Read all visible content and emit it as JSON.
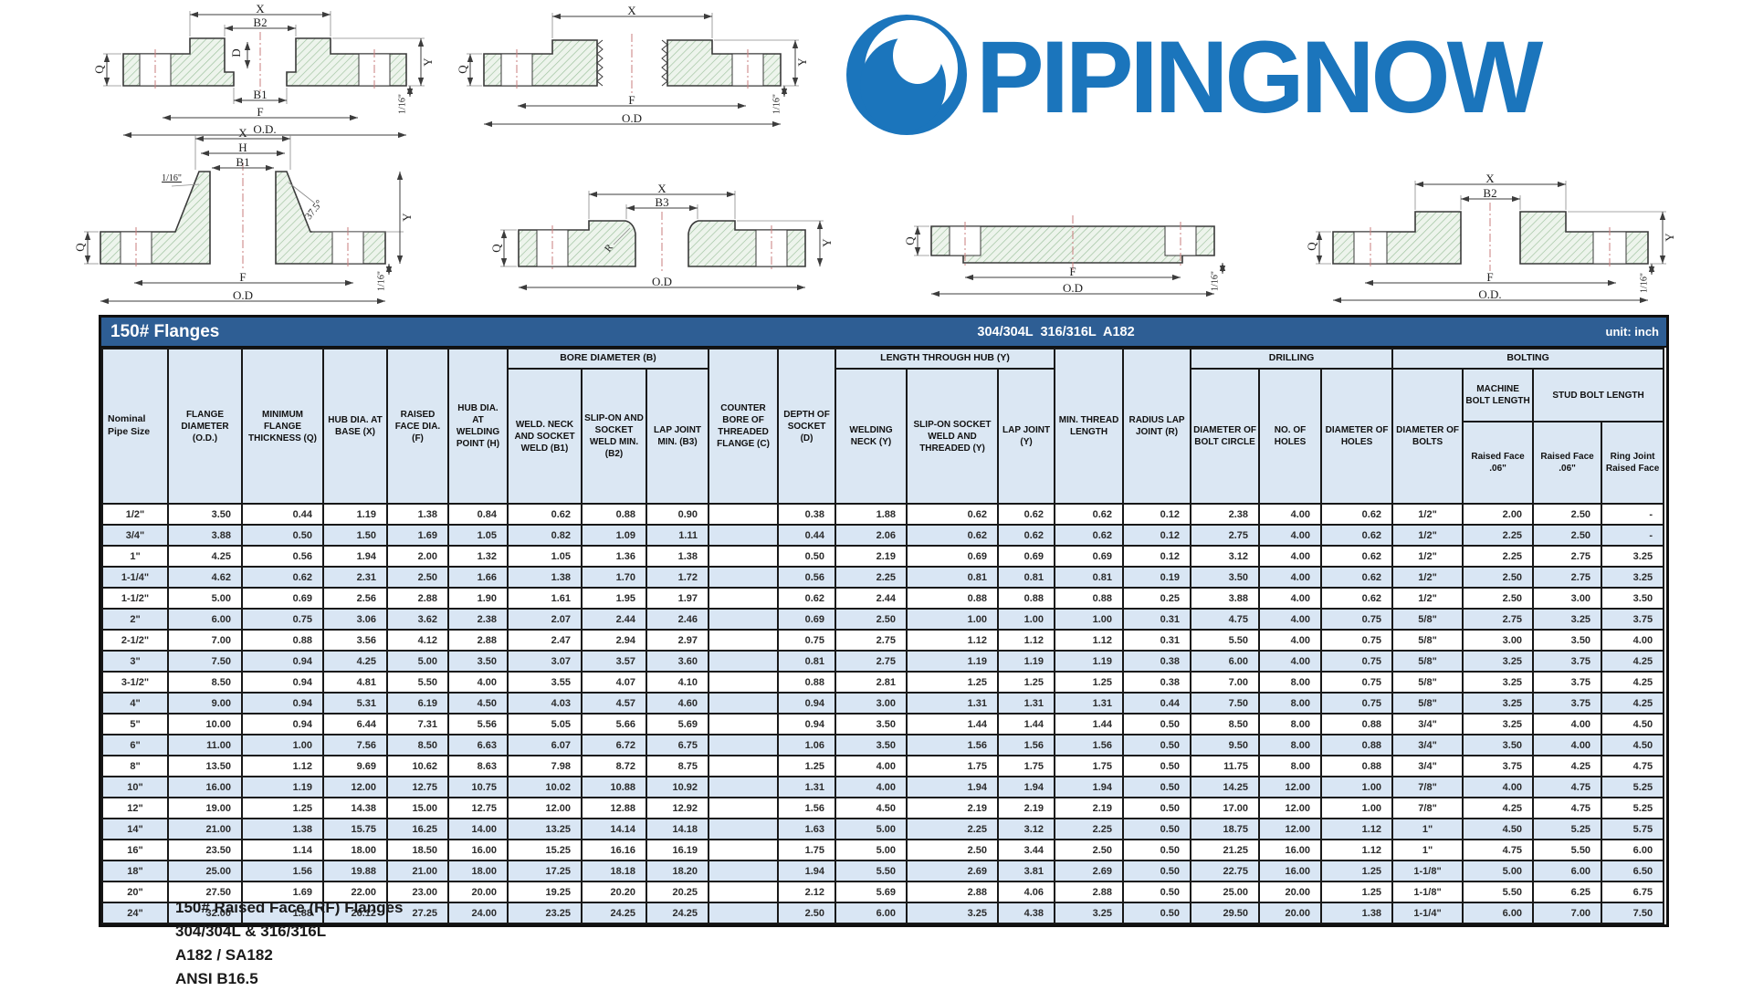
{
  "logo": {
    "text": "PIPINGNOW",
    "color": "#1b75bc"
  },
  "dim_labels": {
    "x": "X",
    "h": "H",
    "d": "D",
    "q": "Q",
    "y": "Y",
    "f": "F",
    "r": "R",
    "b1": "B1",
    "b2": "B2",
    "b3": "B3",
    "od": "O.D.",
    "od_alt": "O.D",
    "sixteenth": "1/16\"",
    "angle": "37.5°"
  },
  "table": {
    "title_left": "150# Flanges",
    "title_center": "304/304L  316/316L  A182",
    "title_right": "unit: inch",
    "groups": {
      "bore": "BORE DIAMETER (B)",
      "length_hub": "LENGTH THROUGH HUB (Y)",
      "drilling": "DRILLING",
      "bolting": "BOLTING",
      "machine_bolt": "MACHINE BOLT LENGTH",
      "stud_bolt": "STUD BOLT LENGTH"
    },
    "columns": [
      "Nominal Pipe Size",
      "FLANGE DIAMETER (O.D.)",
      "MINIMUM FLANGE THICKNESS (Q)",
      "HUB DIA. AT BASE (X)",
      "RAISED FACE DIA. (F)",
      "HUB DIA. AT WELDING POINT (H)",
      "WELD. NECK AND SOCKET WELD (B1)",
      "SLIP-ON AND SOCKET WELD MIN. (B2)",
      "LAP JOINT MIN. (B3)",
      "COUNTER BORE OF THREADED FLANGE (C)",
      "DEPTH OF SOCKET (D)",
      "WELDING NECK (Y)",
      "SLIP-ON SOCKET WELD AND THREADED (Y)",
      "LAP JOINT (Y)",
      "MIN. THREAD LENGTH",
      "RADIUS LAP JOINT (R)",
      "DIAMETER OF BOLT CIRCLE",
      "NO. OF HOLES",
      "DIAMETER OF HOLES",
      "DIAMETER OF BOLTS",
      "Raised Face .06\"",
      "Raised Face .06\"",
      "Ring Joint Raised Face"
    ],
    "rows": [
      [
        "1/2\"",
        "3.50",
        "0.44",
        "1.19",
        "1.38",
        "0.84",
        "0.62",
        "0.88",
        "0.90",
        "",
        "0.38",
        "1.88",
        "0.62",
        "0.62",
        "0.62",
        "0.12",
        "2.38",
        "4.00",
        "0.62",
        "1/2\"",
        "2.00",
        "2.50",
        "-"
      ],
      [
        "3/4\"",
        "3.88",
        "0.50",
        "1.50",
        "1.69",
        "1.05",
        "0.82",
        "1.09",
        "1.11",
        "",
        "0.44",
        "2.06",
        "0.62",
        "0.62",
        "0.62",
        "0.12",
        "2.75",
        "4.00",
        "0.62",
        "1/2\"",
        "2.25",
        "2.50",
        "-"
      ],
      [
        "1\"",
        "4.25",
        "0.56",
        "1.94",
        "2.00",
        "1.32",
        "1.05",
        "1.36",
        "1.38",
        "",
        "0.50",
        "2.19",
        "0.69",
        "0.69",
        "0.69",
        "0.12",
        "3.12",
        "4.00",
        "0.62",
        "1/2\"",
        "2.25",
        "2.75",
        "3.25"
      ],
      [
        "1-1/4\"",
        "4.62",
        "0.62",
        "2.31",
        "2.50",
        "1.66",
        "1.38",
        "1.70",
        "1.72",
        "",
        "0.56",
        "2.25",
        "0.81",
        "0.81",
        "0.81",
        "0.19",
        "3.50",
        "4.00",
        "0.62",
        "1/2\"",
        "2.50",
        "2.75",
        "3.25"
      ],
      [
        "1-1/2\"",
        "5.00",
        "0.69",
        "2.56",
        "2.88",
        "1.90",
        "1.61",
        "1.95",
        "1.97",
        "",
        "0.62",
        "2.44",
        "0.88",
        "0.88",
        "0.88",
        "0.25",
        "3.88",
        "4.00",
        "0.62",
        "1/2\"",
        "2.50",
        "3.00",
        "3.50"
      ],
      [
        "2\"",
        "6.00",
        "0.75",
        "3.06",
        "3.62",
        "2.38",
        "2.07",
        "2.44",
        "2.46",
        "",
        "0.69",
        "2.50",
        "1.00",
        "1.00",
        "1.00",
        "0.31",
        "4.75",
        "4.00",
        "0.75",
        "5/8\"",
        "2.75",
        "3.25",
        "3.75"
      ],
      [
        "2-1/2\"",
        "7.00",
        "0.88",
        "3.56",
        "4.12",
        "2.88",
        "2.47",
        "2.94",
        "2.97",
        "",
        "0.75",
        "2.75",
        "1.12",
        "1.12",
        "1.12",
        "0.31",
        "5.50",
        "4.00",
        "0.75",
        "5/8\"",
        "3.00",
        "3.50",
        "4.00"
      ],
      [
        "3\"",
        "7.50",
        "0.94",
        "4.25",
        "5.00",
        "3.50",
        "3.07",
        "3.57",
        "3.60",
        "",
        "0.81",
        "2.75",
        "1.19",
        "1.19",
        "1.19",
        "0.38",
        "6.00",
        "4.00",
        "0.75",
        "5/8\"",
        "3.25",
        "3.75",
        "4.25"
      ],
      [
        "3-1/2\"",
        "8.50",
        "0.94",
        "4.81",
        "5.50",
        "4.00",
        "3.55",
        "4.07",
        "4.10",
        "",
        "0.88",
        "2.81",
        "1.25",
        "1.25",
        "1.25",
        "0.38",
        "7.00",
        "8.00",
        "0.75",
        "5/8\"",
        "3.25",
        "3.75",
        "4.25"
      ],
      [
        "4\"",
        "9.00",
        "0.94",
        "5.31",
        "6.19",
        "4.50",
        "4.03",
        "4.57",
        "4.60",
        "",
        "0.94",
        "3.00",
        "1.31",
        "1.31",
        "1.31",
        "0.44",
        "7.50",
        "8.00",
        "0.75",
        "5/8\"",
        "3.25",
        "3.75",
        "4.25"
      ],
      [
        "5\"",
        "10.00",
        "0.94",
        "6.44",
        "7.31",
        "5.56",
        "5.05",
        "5.66",
        "5.69",
        "",
        "0.94",
        "3.50",
        "1.44",
        "1.44",
        "1.44",
        "0.50",
        "8.50",
        "8.00",
        "0.88",
        "3/4\"",
        "3.25",
        "4.00",
        "4.50"
      ],
      [
        "6\"",
        "11.00",
        "1.00",
        "7.56",
        "8.50",
        "6.63",
        "6.07",
        "6.72",
        "6.75",
        "",
        "1.06",
        "3.50",
        "1.56",
        "1.56",
        "1.56",
        "0.50",
        "9.50",
        "8.00",
        "0.88",
        "3/4\"",
        "3.50",
        "4.00",
        "4.50"
      ],
      [
        "8\"",
        "13.50",
        "1.12",
        "9.69",
        "10.62",
        "8.63",
        "7.98",
        "8.72",
        "8.75",
        "",
        "1.25",
        "4.00",
        "1.75",
        "1.75",
        "1.75",
        "0.50",
        "11.75",
        "8.00",
        "0.88",
        "3/4\"",
        "3.75",
        "4.25",
        "4.75"
      ],
      [
        "10\"",
        "16.00",
        "1.19",
        "12.00",
        "12.75",
        "10.75",
        "10.02",
        "10.88",
        "10.92",
        "",
        "1.31",
        "4.00",
        "1.94",
        "1.94",
        "1.94",
        "0.50",
        "14.25",
        "12.00",
        "1.00",
        "7/8\"",
        "4.00",
        "4.75",
        "5.25"
      ],
      [
        "12\"",
        "19.00",
        "1.25",
        "14.38",
        "15.00",
        "12.75",
        "12.00",
        "12.88",
        "12.92",
        "",
        "1.56",
        "4.50",
        "2.19",
        "2.19",
        "2.19",
        "0.50",
        "17.00",
        "12.00",
        "1.00",
        "7/8\"",
        "4.25",
        "4.75",
        "5.25"
      ],
      [
        "14\"",
        "21.00",
        "1.38",
        "15.75",
        "16.25",
        "14.00",
        "13.25",
        "14.14",
        "14.18",
        "",
        "1.63",
        "5.00",
        "2.25",
        "3.12",
        "2.25",
        "0.50",
        "18.75",
        "12.00",
        "1.12",
        "1\"",
        "4.50",
        "5.25",
        "5.75"
      ],
      [
        "16\"",
        "23.50",
        "1.14",
        "18.00",
        "18.50",
        "16.00",
        "15.25",
        "16.16",
        "16.19",
        "",
        "1.75",
        "5.00",
        "2.50",
        "3.44",
        "2.50",
        "0.50",
        "21.25",
        "16.00",
        "1.12",
        "1\"",
        "4.75",
        "5.50",
        "6.00"
      ],
      [
        "18\"",
        "25.00",
        "1.56",
        "19.88",
        "21.00",
        "18.00",
        "17.25",
        "18.18",
        "18.20",
        "",
        "1.94",
        "5.50",
        "2.69",
        "3.81",
        "2.69",
        "0.50",
        "22.75",
        "16.00",
        "1.25",
        "1-1/8\"",
        "5.00",
        "6.00",
        "6.50"
      ],
      [
        "20\"",
        "27.50",
        "1.69",
        "22.00",
        "23.00",
        "20.00",
        "19.25",
        "20.20",
        "20.25",
        "",
        "2.12",
        "5.69",
        "2.88",
        "4.06",
        "2.88",
        "0.50",
        "25.00",
        "20.00",
        "1.25",
        "1-1/8\"",
        "5.50",
        "6.25",
        "6.75"
      ],
      [
        "24\"",
        "32.00",
        "1.88",
        "26.12",
        "27.25",
        "24.00",
        "23.25",
        "24.25",
        "24.25",
        "",
        "2.50",
        "6.00",
        "3.25",
        "4.38",
        "3.25",
        "0.50",
        "29.50",
        "20.00",
        "1.38",
        "1-1/4\"",
        "6.00",
        "7.00",
        "7.50"
      ]
    ]
  },
  "footer": {
    "lines": [
      "150# Raised Face (RF) Flanges",
      "304/304L & 316/316L",
      "A182 / SA182",
      "ANSI B16.5"
    ]
  }
}
